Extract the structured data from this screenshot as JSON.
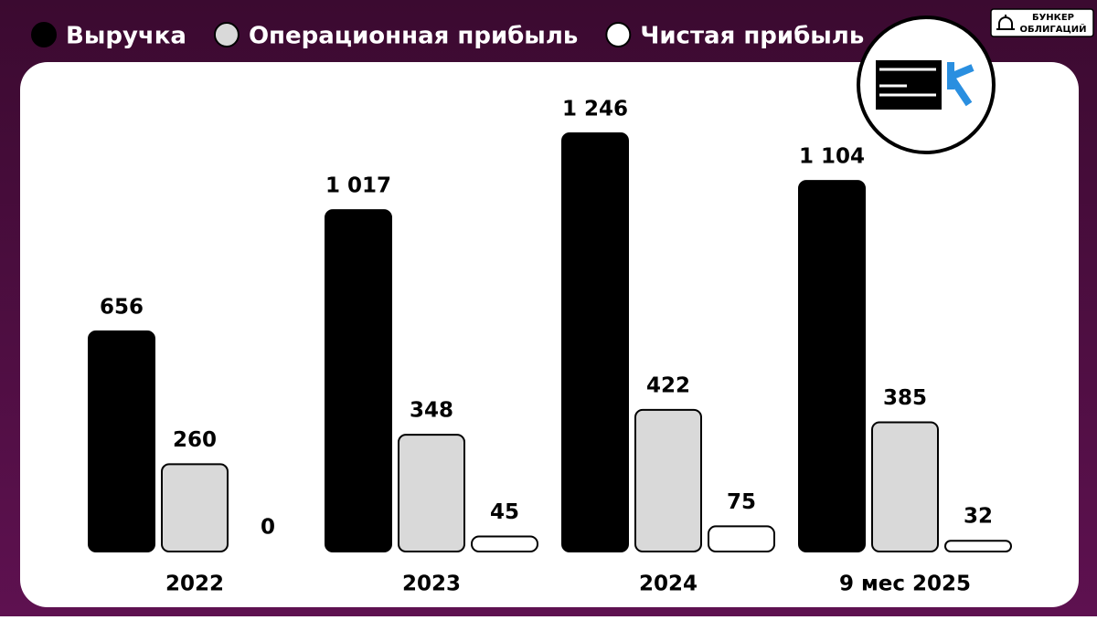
{
  "chart_data": {
    "type": "bar",
    "categories": [
      "2022",
      "2023",
      "2024",
      "9 мес 2025"
    ],
    "series": [
      {
        "name": "Выручка",
        "color": "#000000",
        "values": [
          656,
          1017,
          1246,
          1104
        ],
        "value_labels": [
          "656",
          "1 017",
          "1 246",
          "1 104"
        ]
      },
      {
        "name": "Операционная прибыль",
        "color": "#d9d9d9",
        "values": [
          260,
          348,
          422,
          385
        ]
      },
      {
        "name": "Чистая прибыль",
        "color": "#ffffff",
        "values": [
          0,
          45,
          75,
          32
        ]
      }
    ]
  },
  "brand": [
    "БУНКЕР",
    "ОБЛИГАЦИЙ"
  ]
}
